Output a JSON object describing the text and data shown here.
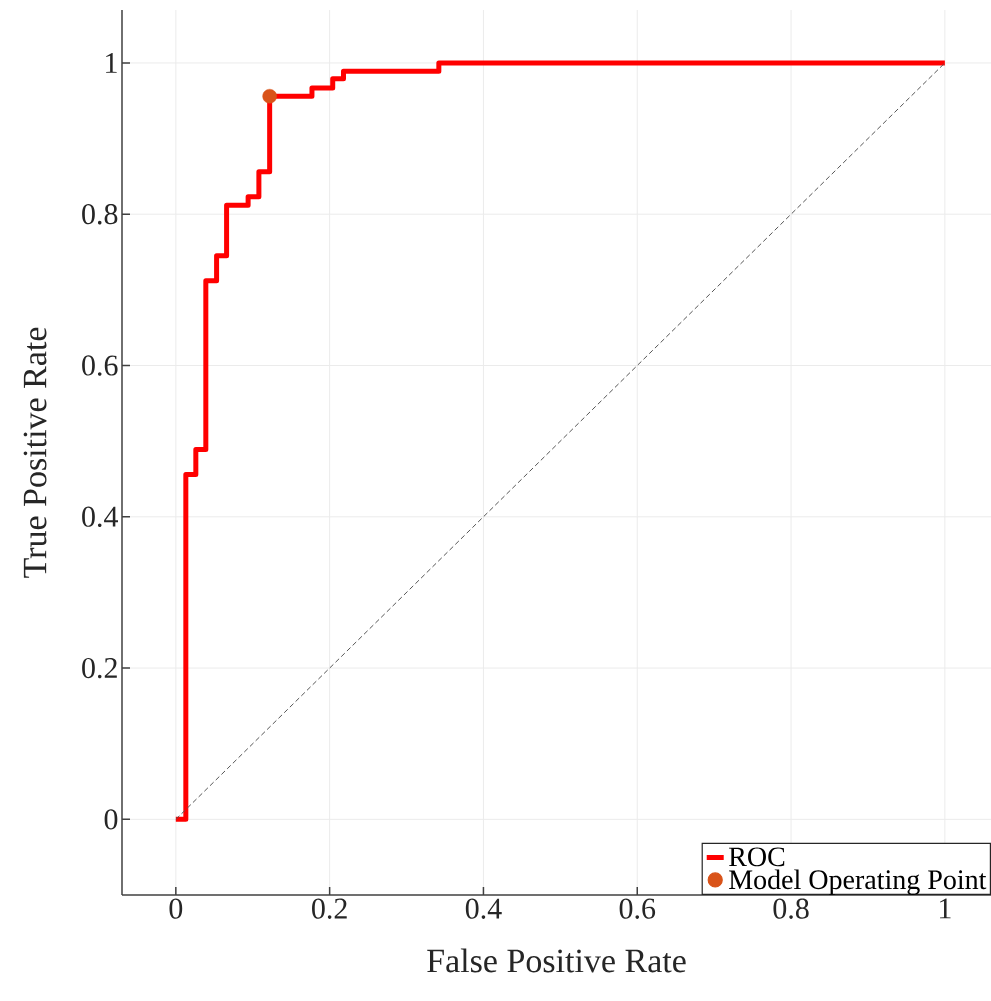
{
  "chart_data": {
    "type": "step",
    "xlabel": "False Positive Rate",
    "ylabel": "True Positive Rate",
    "xlim": [
      -0.07,
      1.06
    ],
    "ylim": [
      -0.1,
      1.07
    ],
    "xticks": [
      0,
      0.2,
      0.4,
      0.6,
      0.8,
      1
    ],
    "yticks": [
      0,
      0.2,
      0.4,
      0.6,
      0.8,
      1
    ],
    "grid": true,
    "legend": "bottom right",
    "series": [
      {
        "name": "ROC",
        "type": "step",
        "color": "#ff0000",
        "marker": "none",
        "line_style": "solid",
        "x": [
          0,
          0.013,
          0.026,
          0.039,
          0.053,
          0.066,
          0.094,
          0.108,
          0.122,
          0.177,
          0.204,
          0.218,
          0.342,
          1
        ],
        "values": [
          0,
          0.456,
          0.489,
          0.712,
          0.745,
          0.812,
          0.823,
          0.856,
          0.956,
          0.967,
          0.979,
          0.989,
          1,
          1
        ]
      },
      {
        "name": "Model Operating Point",
        "type": "scatter",
        "color": "#d95319",
        "marker": "circle",
        "x": [
          0.122
        ],
        "values": [
          0.956
        ]
      },
      {
        "type": "line",
        "color": "#555555",
        "marker": "none",
        "line_style": "dashed",
        "x": [
          0,
          1
        ],
        "values": [
          0,
          1
        ]
      }
    ]
  }
}
